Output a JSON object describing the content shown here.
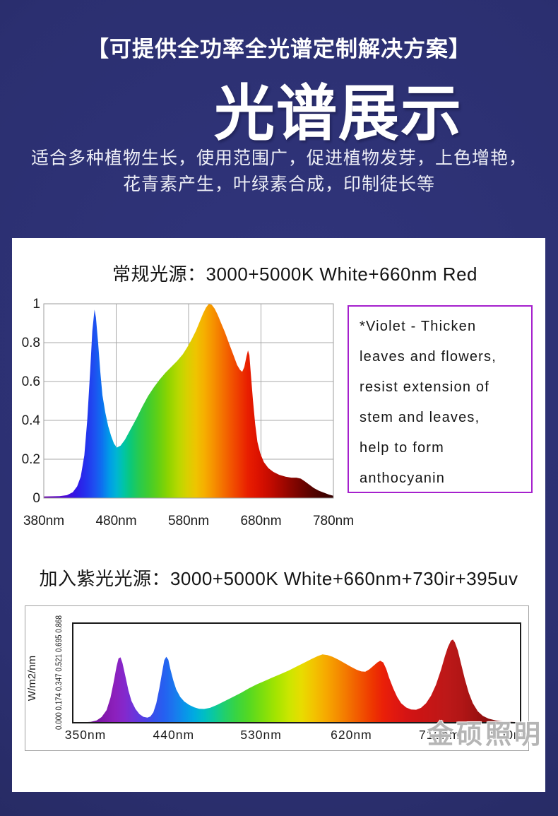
{
  "header": {
    "tagline": "【可提供全功率全光谱定制解决方案】",
    "title": "光谱展示",
    "subtitle_lines": [
      "适合多种植物生长，使用范围广，促进植物发芽，上色增艳，",
      "花青素产生，叶绿素合成，印制徒长等"
    ]
  },
  "violet_note": {
    "lines": [
      "*Violet - Thicken",
      "leaves and flowers,",
      "resist extension of",
      "stem and leaves,",
      "help to form",
      "anthocyanin"
    ]
  },
  "watermark": "金硕照明",
  "colors": {
    "background_navy": "#2b2f70",
    "panel_white": "#ffffff",
    "violet_border": "#a520cd",
    "chart_grid": "#a8a8a8",
    "chart2_plot_border": "#1a1a1a",
    "text_dark": "#141414"
  },
  "chart_data": [
    {
      "type": "area",
      "title": "常规光源：3000+5000K White+660nm Red",
      "xlim": [
        380,
        780
      ],
      "ylim": [
        0,
        1
      ],
      "grid": true,
      "x_ticks": [
        "380nm",
        "480nm",
        "580nm",
        "680nm",
        "780nm"
      ],
      "x_tick_values": [
        380,
        480,
        580,
        680,
        780
      ],
      "y_ticks": [
        "1",
        "0.8",
        "0.6",
        "0.4",
        "0.2",
        "0"
      ],
      "y_tick_values": [
        1,
        0.8,
        0.6,
        0.4,
        0.2,
        0
      ],
      "points": [
        [
          380,
          0.008
        ],
        [
          392,
          0.009
        ],
        [
          402,
          0.01
        ],
        [
          412,
          0.015
        ],
        [
          420,
          0.03
        ],
        [
          426,
          0.06
        ],
        [
          431,
          0.11
        ],
        [
          436,
          0.22
        ],
        [
          440,
          0.4
        ],
        [
          444,
          0.65
        ],
        [
          447,
          0.86
        ],
        [
          450,
          0.97
        ],
        [
          452,
          0.93
        ],
        [
          455,
          0.8
        ],
        [
          458,
          0.65
        ],
        [
          461,
          0.53
        ],
        [
          465,
          0.44
        ],
        [
          469,
          0.37
        ],
        [
          473,
          0.32
        ],
        [
          477,
          0.28
        ],
        [
          481,
          0.26
        ],
        [
          486,
          0.27
        ],
        [
          492,
          0.3
        ],
        [
          500,
          0.355
        ],
        [
          508,
          0.41
        ],
        [
          516,
          0.47
        ],
        [
          524,
          0.525
        ],
        [
          532,
          0.57
        ],
        [
          540,
          0.61
        ],
        [
          548,
          0.645
        ],
        [
          556,
          0.675
        ],
        [
          564,
          0.705
        ],
        [
          572,
          0.74
        ],
        [
          578,
          0.775
        ],
        [
          584,
          0.815
        ],
        [
          590,
          0.86
        ],
        [
          595,
          0.905
        ],
        [
          600,
          0.95
        ],
        [
          604,
          0.98
        ],
        [
          608,
          1.0
        ],
        [
          612,
          0.995
        ],
        [
          616,
          0.975
        ],
        [
          620,
          0.945
        ],
        [
          625,
          0.9
        ],
        [
          630,
          0.855
        ],
        [
          636,
          0.795
        ],
        [
          642,
          0.735
        ],
        [
          647,
          0.685
        ],
        [
          651,
          0.66
        ],
        [
          654,
          0.65
        ],
        [
          657,
          0.675
        ],
        [
          660,
          0.73
        ],
        [
          662,
          0.76
        ],
        [
          664,
          0.735
        ],
        [
          666,
          0.64
        ],
        [
          669,
          0.5
        ],
        [
          672,
          0.38
        ],
        [
          675,
          0.29
        ],
        [
          679,
          0.23
        ],
        [
          684,
          0.185
        ],
        [
          690,
          0.155
        ],
        [
          697,
          0.135
        ],
        [
          705,
          0.12
        ],
        [
          714,
          0.11
        ],
        [
          722,
          0.105
        ],
        [
          729,
          0.105
        ],
        [
          735,
          0.1
        ],
        [
          741,
          0.085
        ],
        [
          747,
          0.068
        ],
        [
          753,
          0.052
        ],
        [
          760,
          0.038
        ],
        [
          768,
          0.026
        ],
        [
          774,
          0.018
        ],
        [
          780,
          0.012
        ]
      ],
      "gradient_stops": [
        [
          380,
          "#6a00a8"
        ],
        [
          395,
          "#5c00c0"
        ],
        [
          410,
          "#4a08d8"
        ],
        [
          425,
          "#3018e6"
        ],
        [
          440,
          "#2236ee"
        ],
        [
          450,
          "#1e50f0"
        ],
        [
          460,
          "#0e6ff0"
        ],
        [
          470,
          "#009ae8"
        ],
        [
          480,
          "#00b4d4"
        ],
        [
          490,
          "#00c4a8"
        ],
        [
          500,
          "#0cc878"
        ],
        [
          512,
          "#28ca4e"
        ],
        [
          524,
          "#3fcc30"
        ],
        [
          538,
          "#62d014"
        ],
        [
          552,
          "#8ed400"
        ],
        [
          566,
          "#b8d800"
        ],
        [
          578,
          "#d8d000"
        ],
        [
          590,
          "#eec400"
        ],
        [
          602,
          "#f6ae00"
        ],
        [
          614,
          "#f69200"
        ],
        [
          626,
          "#f47400"
        ],
        [
          638,
          "#f25600"
        ],
        [
          650,
          "#ee3a00"
        ],
        [
          662,
          "#e81e00"
        ],
        [
          676,
          "#dc1200"
        ],
        [
          690,
          "#c80c00"
        ],
        [
          705,
          "#ac0800"
        ],
        [
          720,
          "#8e0600"
        ],
        [
          736,
          "#700400"
        ],
        [
          752,
          "#540300"
        ],
        [
          766,
          "#420200"
        ],
        [
          780,
          "#340100"
        ]
      ]
    },
    {
      "type": "area",
      "title": "加入紫光光源：3000+5000K White+660nm+730ir+395uv",
      "ylabel": "W/m2/nm",
      "y_axis_ticks_text": "0.000 0.174 0.347 0.521 0.695 0.868",
      "xlim": [
        350,
        800
      ],
      "ylim": [
        0,
        0.868
      ],
      "grid": false,
      "x_ticks": [
        "350nm",
        "440nm",
        "530nm",
        "620nm",
        "710nm",
        "800nm"
      ],
      "x_tick_values": [
        350,
        440,
        530,
        620,
        710,
        800
      ],
      "y_tick_values": [
        0,
        0.174,
        0.347,
        0.521,
        0.695,
        0.868
      ],
      "points": [
        [
          350,
          0.004
        ],
        [
          360,
          0.004
        ],
        [
          368,
          0.008
        ],
        [
          374,
          0.02
        ],
        [
          379,
          0.05
        ],
        [
          384,
          0.11
        ],
        [
          388,
          0.22
        ],
        [
          391,
          0.35
        ],
        [
          394,
          0.49
        ],
        [
          396,
          0.56
        ],
        [
          398,
          0.57
        ],
        [
          400,
          0.52
        ],
        [
          403,
          0.4
        ],
        [
          406,
          0.28
        ],
        [
          409,
          0.19
        ],
        [
          413,
          0.12
        ],
        [
          417,
          0.075
        ],
        [
          421,
          0.052
        ],
        [
          425,
          0.045
        ],
        [
          428,
          0.055
        ],
        [
          431,
          0.09
        ],
        [
          434,
          0.17
        ],
        [
          437,
          0.3
        ],
        [
          440,
          0.45
        ],
        [
          442,
          0.545
        ],
        [
          444,
          0.575
        ],
        [
          446,
          0.55
        ],
        [
          448,
          0.47
        ],
        [
          451,
          0.37
        ],
        [
          454,
          0.29
        ],
        [
          458,
          0.225
        ],
        [
          462,
          0.185
        ],
        [
          467,
          0.155
        ],
        [
          472,
          0.135
        ],
        [
          477,
          0.122
        ],
        [
          482,
          0.12
        ],
        [
          488,
          0.13
        ],
        [
          495,
          0.155
        ],
        [
          503,
          0.19
        ],
        [
          511,
          0.225
        ],
        [
          519,
          0.26
        ],
        [
          527,
          0.3
        ],
        [
          535,
          0.335
        ],
        [
          543,
          0.365
        ],
        [
          551,
          0.395
        ],
        [
          559,
          0.425
        ],
        [
          567,
          0.455
        ],
        [
          575,
          0.49
        ],
        [
          583,
          0.525
        ],
        [
          590,
          0.555
        ],
        [
          596,
          0.58
        ],
        [
          601,
          0.595
        ],
        [
          606,
          0.59
        ],
        [
          611,
          0.575
        ],
        [
          617,
          0.55
        ],
        [
          623,
          0.52
        ],
        [
          629,
          0.49
        ],
        [
          635,
          0.463
        ],
        [
          640,
          0.447
        ],
        [
          644,
          0.445
        ],
        [
          648,
          0.465
        ],
        [
          652,
          0.495
        ],
        [
          656,
          0.525
        ],
        [
          659,
          0.54
        ],
        [
          662,
          0.525
        ],
        [
          665,
          0.47
        ],
        [
          668,
          0.39
        ],
        [
          672,
          0.3
        ],
        [
          676,
          0.225
        ],
        [
          680,
          0.17
        ],
        [
          685,
          0.133
        ],
        [
          690,
          0.115
        ],
        [
          695,
          0.113
        ],
        [
          700,
          0.13
        ],
        [
          705,
          0.17
        ],
        [
          710,
          0.235
        ],
        [
          715,
          0.33
        ],
        [
          720,
          0.46
        ],
        [
          724,
          0.58
        ],
        [
          727,
          0.66
        ],
        [
          730,
          0.715
        ],
        [
          732,
          0.725
        ],
        [
          734,
          0.7
        ],
        [
          737,
          0.63
        ],
        [
          740,
          0.52
        ],
        [
          744,
          0.38
        ],
        [
          748,
          0.26
        ],
        [
          752,
          0.17
        ],
        [
          757,
          0.1
        ],
        [
          762,
          0.06
        ],
        [
          768,
          0.035
        ],
        [
          775,
          0.02
        ],
        [
          783,
          0.012
        ],
        [
          792,
          0.007
        ],
        [
          800,
          0.005
        ]
      ],
      "gradient_stops": [
        [
          350,
          "#5c0086"
        ],
        [
          365,
          "#6f0c96"
        ],
        [
          380,
          "#8118aa"
        ],
        [
          392,
          "#8c20bc"
        ],
        [
          402,
          "#8428cc"
        ],
        [
          412,
          "#6c34da"
        ],
        [
          422,
          "#5040e4"
        ],
        [
          432,
          "#3452ec"
        ],
        [
          442,
          "#2560f0"
        ],
        [
          452,
          "#1a78ee"
        ],
        [
          462,
          "#0a92ea"
        ],
        [
          472,
          "#00abe0"
        ],
        [
          482,
          "#00bec4"
        ],
        [
          492,
          "#0cc99c"
        ],
        [
          502,
          "#20cf6e"
        ],
        [
          514,
          "#38d442"
        ],
        [
          526,
          "#52d824"
        ],
        [
          540,
          "#7ade0e"
        ],
        [
          554,
          "#a4e400"
        ],
        [
          568,
          "#cce600"
        ],
        [
          580,
          "#e8dc00"
        ],
        [
          592,
          "#f2c400"
        ],
        [
          604,
          "#f6aa00"
        ],
        [
          616,
          "#f58e00"
        ],
        [
          628,
          "#f37000"
        ],
        [
          640,
          "#f15200"
        ],
        [
          652,
          "#ee3400"
        ],
        [
          662,
          "#ea2008"
        ],
        [
          674,
          "#e01810"
        ],
        [
          686,
          "#d41414"
        ],
        [
          698,
          "#cc1414"
        ],
        [
          712,
          "#c41616"
        ],
        [
          726,
          "#bc1818"
        ],
        [
          740,
          "#b21616"
        ],
        [
          754,
          "#a01212"
        ],
        [
          768,
          "#8a0e0e"
        ],
        [
          784,
          "#740a0a"
        ],
        [
          800,
          "#600808"
        ]
      ]
    }
  ]
}
